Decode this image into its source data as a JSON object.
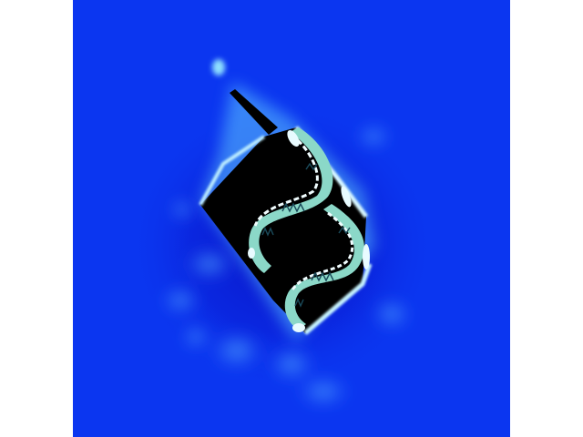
{
  "image": {
    "subject": "false-color-object",
    "colors": {
      "background": "#0b36f0",
      "deep_blue": "#0a12c8",
      "glow": "#63c8ff",
      "highlight": "#e8fbff",
      "core": "#000000",
      "texture": "#8bd8c8"
    }
  }
}
